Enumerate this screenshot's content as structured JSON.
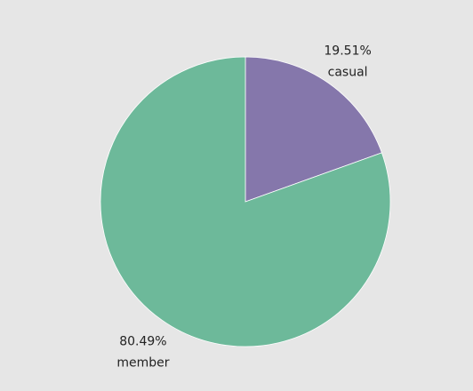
{
  "chart_data": {
    "type": "pie",
    "title": "",
    "slices": [
      {
        "label": "casual",
        "value": 19.51,
        "percent_label": "19.51%",
        "color": "#8577ab"
      },
      {
        "label": "member",
        "value": 80.49,
        "percent_label": "80.49%",
        "color": "#6db99a"
      }
    ],
    "start_angle": "12 o'clock",
    "direction": "clockwise",
    "legend": "none",
    "background_color": "#e6e6e6"
  }
}
